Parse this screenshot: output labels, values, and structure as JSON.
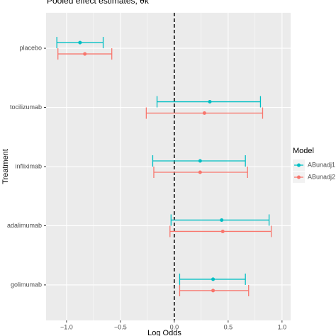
{
  "chart_data": {
    "type": "forest",
    "title": "Pooled effect estimates, θk",
    "xlabel": "Log Odds",
    "ylabel": "Treatment",
    "legend_title": "Model",
    "legend_position": "right",
    "categories": [
      "placebo",
      "tocilizumab",
      "infliximab",
      "adalimumab",
      "golimumab"
    ],
    "series": [
      {
        "name": "ABunadj1",
        "color": "#00BFC4",
        "values": [
          -0.875,
          0.33,
          0.24,
          0.44,
          0.36
        ],
        "lower": [
          -1.09,
          -0.16,
          -0.2,
          -0.03,
          0.05
        ],
        "upper": [
          -0.66,
          0.8,
          0.66,
          0.88,
          0.66
        ]
      },
      {
        "name": "ABunadj2",
        "color": "#F8766D",
        "values": [
          -0.83,
          0.28,
          0.24,
          0.45,
          0.36
        ],
        "lower": [
          -1.08,
          -0.26,
          -0.19,
          -0.04,
          0.05
        ],
        "upper": [
          -0.58,
          0.82,
          0.68,
          0.9,
          0.69
        ]
      }
    ],
    "xlim": [
      -1.19,
      1.08
    ],
    "xticks": [
      {
        "value": -1,
        "label": "−1.0"
      },
      {
        "value": -0.5,
        "label": "−0.5"
      },
      {
        "value": 0,
        "label": "0.0"
      },
      0.5,
      {
        "value": 1,
        "label": "1.0"
      }
    ],
    "reference_line": 0,
    "grid": true
  }
}
